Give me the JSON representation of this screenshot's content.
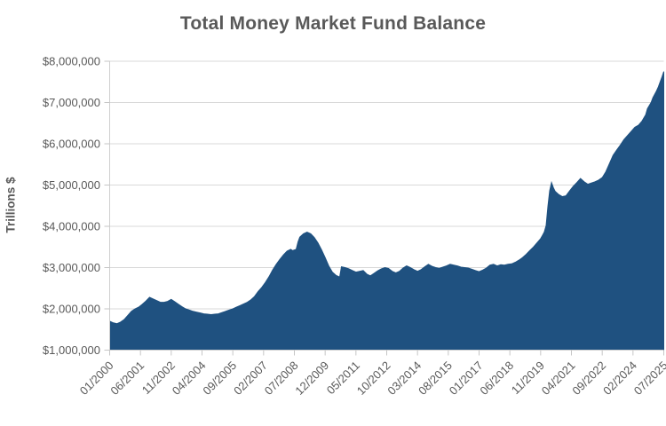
{
  "colors": {
    "area_fill": "#1F5180",
    "grid": "#D9D9D9",
    "axis": "#CFCFCF",
    "tick": "#C6C6C6",
    "text": "#595959",
    "title_text": "#595959"
  },
  "chart_data": {
    "type": "area",
    "title": "Total Money Market Fund Balance",
    "xlabel": "",
    "ylabel": "Trillions $",
    "ylim": [
      1000000,
      8000000
    ],
    "y_tick_step": 1000000,
    "grid": "horizontal",
    "legend": "none",
    "y_tick_labels": [
      "$8,000,000",
      "$7,000,000",
      "$6,000,000",
      "$5,000,000",
      "$4,000,000",
      "$3,000,000",
      "$2,000,000",
      "$1,000,000"
    ],
    "x_tick_labels": [
      "01/2000",
      "06/2001",
      "11/2002",
      "04/2004",
      "09/2005",
      "02/2007",
      "07/2008",
      "12/2009",
      "05/2011",
      "10/2012",
      "03/2014",
      "08/2015",
      "01/2017",
      "06/2018",
      "11/2019",
      "04/2021",
      "09/2022",
      "02/2024",
      "07/2025"
    ],
    "x_start": "01/2000",
    "x_end": "07/2025",
    "series": [
      {
        "name": "Total Money Market Fund Balance",
        "points": [
          [
            "01/2000",
            1700000
          ],
          [
            "03/2000",
            1660000
          ],
          [
            "05/2000",
            1640000
          ],
          [
            "07/2000",
            1680000
          ],
          [
            "09/2000",
            1740000
          ],
          [
            "11/2000",
            1840000
          ],
          [
            "01/2001",
            1940000
          ],
          [
            "03/2001",
            2000000
          ],
          [
            "05/2001",
            2040000
          ],
          [
            "07/2001",
            2110000
          ],
          [
            "09/2001",
            2190000
          ],
          [
            "11/2001",
            2280000
          ],
          [
            "01/2002",
            2240000
          ],
          [
            "03/2002",
            2200000
          ],
          [
            "05/2002",
            2160000
          ],
          [
            "07/2002",
            2160000
          ],
          [
            "09/2002",
            2180000
          ],
          [
            "11/2002",
            2230000
          ],
          [
            "01/2003",
            2170000
          ],
          [
            "03/2003",
            2110000
          ],
          [
            "05/2003",
            2050000
          ],
          [
            "07/2003",
            2000000
          ],
          [
            "09/2003",
            1970000
          ],
          [
            "11/2003",
            1940000
          ],
          [
            "01/2004",
            1920000
          ],
          [
            "03/2004",
            1900000
          ],
          [
            "05/2004",
            1880000
          ],
          [
            "07/2004",
            1870000
          ],
          [
            "09/2004",
            1860000
          ],
          [
            "11/2004",
            1870000
          ],
          [
            "01/2005",
            1880000
          ],
          [
            "03/2005",
            1910000
          ],
          [
            "05/2005",
            1940000
          ],
          [
            "07/2005",
            1970000
          ],
          [
            "09/2005",
            2000000
          ],
          [
            "11/2005",
            2040000
          ],
          [
            "01/2006",
            2080000
          ],
          [
            "03/2006",
            2120000
          ],
          [
            "05/2006",
            2160000
          ],
          [
            "07/2006",
            2220000
          ],
          [
            "09/2006",
            2300000
          ],
          [
            "11/2006",
            2420000
          ],
          [
            "01/2007",
            2520000
          ],
          [
            "03/2007",
            2640000
          ],
          [
            "05/2007",
            2780000
          ],
          [
            "07/2007",
            2940000
          ],
          [
            "09/2007",
            3080000
          ],
          [
            "11/2007",
            3200000
          ],
          [
            "01/2008",
            3310000
          ],
          [
            "03/2008",
            3400000
          ],
          [
            "05/2008",
            3440000
          ],
          [
            "06/2008",
            3410000
          ],
          [
            "08/2008",
            3440000
          ],
          [
            "09/2008",
            3620000
          ],
          [
            "10/2008",
            3740000
          ],
          [
            "12/2008",
            3820000
          ],
          [
            "02/2009",
            3860000
          ],
          [
            "04/2009",
            3820000
          ],
          [
            "06/2009",
            3730000
          ],
          [
            "08/2009",
            3600000
          ],
          [
            "10/2009",
            3430000
          ],
          [
            "12/2009",
            3240000
          ],
          [
            "02/2010",
            3040000
          ],
          [
            "04/2010",
            2890000
          ],
          [
            "06/2010",
            2810000
          ],
          [
            "08/2010",
            2770000
          ],
          [
            "09/2010",
            3020000
          ],
          [
            "11/2010",
            3000000
          ],
          [
            "01/2011",
            2970000
          ],
          [
            "03/2011",
            2930000
          ],
          [
            "05/2011",
            2890000
          ],
          [
            "07/2011",
            2910000
          ],
          [
            "09/2011",
            2930000
          ],
          [
            "11/2011",
            2840000
          ],
          [
            "01/2012",
            2800000
          ],
          [
            "03/2012",
            2860000
          ],
          [
            "05/2012",
            2920000
          ],
          [
            "07/2012",
            2970000
          ],
          [
            "09/2012",
            3000000
          ],
          [
            "11/2012",
            2980000
          ],
          [
            "01/2013",
            2910000
          ],
          [
            "03/2013",
            2870000
          ],
          [
            "05/2013",
            2910000
          ],
          [
            "07/2013",
            2990000
          ],
          [
            "09/2013",
            3040000
          ],
          [
            "11/2013",
            3000000
          ],
          [
            "01/2014",
            2950000
          ],
          [
            "03/2014",
            2910000
          ],
          [
            "05/2014",
            2950000
          ],
          [
            "07/2014",
            3020000
          ],
          [
            "09/2014",
            3080000
          ],
          [
            "11/2014",
            3030000
          ],
          [
            "01/2015",
            3000000
          ],
          [
            "03/2015",
            2980000
          ],
          [
            "05/2015",
            3010000
          ],
          [
            "07/2015",
            3040000
          ],
          [
            "09/2015",
            3080000
          ],
          [
            "11/2015",
            3060000
          ],
          [
            "01/2016",
            3040000
          ],
          [
            "03/2016",
            3010000
          ],
          [
            "05/2016",
            3000000
          ],
          [
            "07/2016",
            2990000
          ],
          [
            "09/2016",
            2960000
          ],
          [
            "11/2016",
            2930000
          ],
          [
            "01/2017",
            2900000
          ],
          [
            "03/2017",
            2940000
          ],
          [
            "05/2017",
            2990000
          ],
          [
            "07/2017",
            3060000
          ],
          [
            "09/2017",
            3080000
          ],
          [
            "11/2017",
            3040000
          ],
          [
            "01/2018",
            3070000
          ],
          [
            "03/2018",
            3060000
          ],
          [
            "05/2018",
            3080000
          ],
          [
            "07/2018",
            3090000
          ],
          [
            "09/2018",
            3130000
          ],
          [
            "11/2018",
            3180000
          ],
          [
            "01/2019",
            3240000
          ],
          [
            "03/2019",
            3320000
          ],
          [
            "05/2019",
            3410000
          ],
          [
            "07/2019",
            3500000
          ],
          [
            "09/2019",
            3600000
          ],
          [
            "11/2019",
            3700000
          ],
          [
            "12/2019",
            3780000
          ],
          [
            "01/2020",
            3860000
          ],
          [
            "02/2020",
            4020000
          ],
          [
            "03/2020",
            4480000
          ],
          [
            "04/2020",
            4860000
          ],
          [
            "05/2020",
            5060000
          ],
          [
            "06/2020",
            4940000
          ],
          [
            "07/2020",
            4850000
          ],
          [
            "09/2020",
            4770000
          ],
          [
            "11/2020",
            4720000
          ],
          [
            "01/2021",
            4740000
          ],
          [
            "03/2021",
            4860000
          ],
          [
            "05/2021",
            4970000
          ],
          [
            "07/2021",
            5060000
          ],
          [
            "09/2021",
            5160000
          ],
          [
            "11/2021",
            5080000
          ],
          [
            "01/2022",
            5020000
          ],
          [
            "03/2022",
            5050000
          ],
          [
            "05/2022",
            5080000
          ],
          [
            "07/2022",
            5120000
          ],
          [
            "09/2022",
            5180000
          ],
          [
            "11/2022",
            5320000
          ],
          [
            "01/2023",
            5520000
          ],
          [
            "03/2023",
            5720000
          ],
          [
            "05/2023",
            5850000
          ],
          [
            "07/2023",
            5970000
          ],
          [
            "09/2023",
            6100000
          ],
          [
            "11/2023",
            6200000
          ],
          [
            "01/2024",
            6300000
          ],
          [
            "03/2024",
            6400000
          ],
          [
            "05/2024",
            6450000
          ],
          [
            "07/2024",
            6550000
          ],
          [
            "09/2024",
            6700000
          ],
          [
            "10/2024",
            6850000
          ],
          [
            "12/2024",
            7000000
          ],
          [
            "01/2025",
            7120000
          ],
          [
            "02/2025",
            7200000
          ],
          [
            "03/2025",
            7280000
          ],
          [
            "04/2025",
            7380000
          ],
          [
            "05/2025",
            7500000
          ],
          [
            "06/2025",
            7620000
          ],
          [
            "07/2025",
            7750000
          ]
        ]
      }
    ]
  }
}
